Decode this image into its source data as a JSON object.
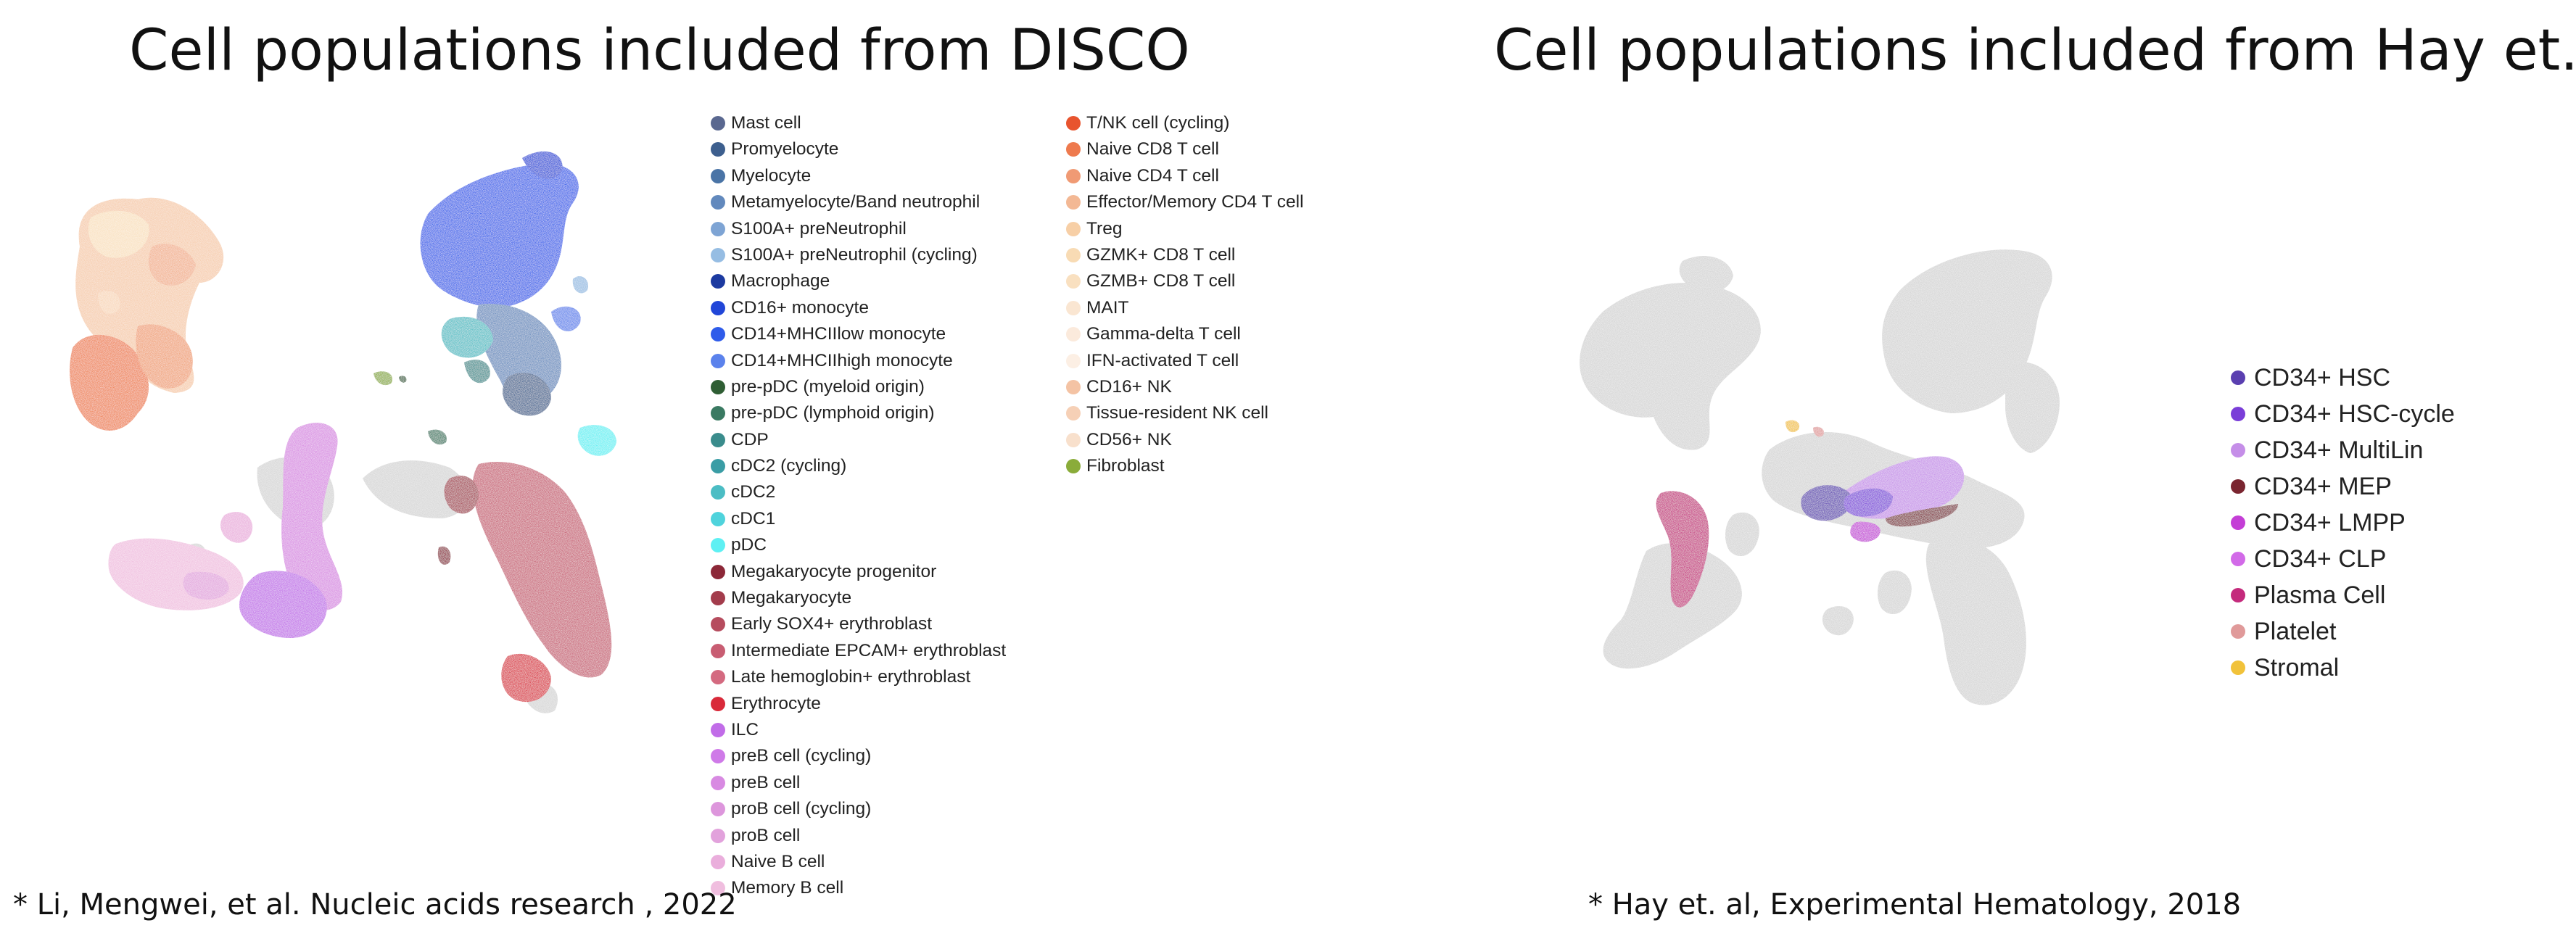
{
  "panels": [
    {
      "title": "Cell populations included from DISCO",
      "citation": "* Li, Mengwei, et al. Nucleic acids research , 2022",
      "legend_columns": [
        [
          {
            "label": "Mast cell",
            "color": "#5a6890"
          },
          {
            "label": "Promyelocyte",
            "color": "#3d5f8e"
          },
          {
            "label": "Myelocyte",
            "color": "#4a74a6"
          },
          {
            "label": "Metamyelocyte/Band neutrophil",
            "color": "#6289bd"
          },
          {
            "label": "S100A+ preNeutrophil",
            "color": "#7ea4d4"
          },
          {
            "label": "S100A+ preNeutrophil (cycling)",
            "color": "#96bde3"
          },
          {
            "label": "Macrophage",
            "color": "#1c3aa0"
          },
          {
            "label": "CD16+ monocyte",
            "color": "#2146d8"
          },
          {
            "label": "CD14+MHCIIlow monocyte",
            "color": "#2f5cea"
          },
          {
            "label": "CD14+MHCIIhigh monocyte",
            "color": "#5b82ec"
          },
          {
            "label": "pre-pDC (myeloid origin)",
            "color": "#2f5e34"
          },
          {
            "label": "pre-pDC (lymphoid origin)",
            "color": "#3a7a62"
          },
          {
            "label": "CDP",
            "color": "#3a8c8c"
          },
          {
            "label": "cDC2 (cycling)",
            "color": "#3a9da5"
          },
          {
            "label": "cDC2",
            "color": "#4bbdc4"
          },
          {
            "label": "cDC1",
            "color": "#4fd3dc"
          },
          {
            "label": "pDC",
            "color": "#5ef0f3"
          },
          {
            "label": "Megakaryocyte progenitor",
            "color": "#8c2838"
          },
          {
            "label": "Megakaryocyte",
            "color": "#a33c4c"
          },
          {
            "label": "Early SOX4+ erythroblast",
            "color": "#b64c5e"
          },
          {
            "label": "Intermediate EPCAM+ erythroblast",
            "color": "#c85d72"
          },
          {
            "label": "Late hemoglobin+ erythroblast",
            "color": "#d46a80"
          },
          {
            "label": "Erythrocyte",
            "color": "#d92a3a"
          },
          {
            "label": "ILC",
            "color": "#c16ce8"
          },
          {
            "label": "preB cell (cycling)",
            "color": "#cf7ae8"
          },
          {
            "label": "preB cell",
            "color": "#d88ae2"
          },
          {
            "label": "proB cell (cycling)",
            "color": "#dd96dc"
          },
          {
            "label": "proB cell",
            "color": "#e2a2dc"
          },
          {
            "label": "Naive B cell",
            "color": "#eaaedc"
          },
          {
            "label": "Memory B cell",
            "color": "#f0bedf"
          }
        ],
        [
          {
            "label": "T/NK cell (cycling)",
            "color": "#e8542e"
          },
          {
            "label": "Naive CD8 T cell",
            "color": "#ee7a4e"
          },
          {
            "label": "Naive CD4 T cell",
            "color": "#f09a74"
          },
          {
            "label": "Effector/Memory CD4 T cell",
            "color": "#f3b894"
          },
          {
            "label": "Treg",
            "color": "#f7cfa6"
          },
          {
            "label": "GZMK+ CD8 T cell",
            "color": "#f8dbb4"
          },
          {
            "label": "GZMB+ CD8 T cell",
            "color": "#f9e0c0"
          },
          {
            "label": "MAIT",
            "color": "#fae6d2"
          },
          {
            "label": "Gamma-delta T cell",
            "color": "#fbeadc"
          },
          {
            "label": "IFN-activated T cell",
            "color": "#fcefe4"
          },
          {
            "label": "CD16+ NK",
            "color": "#f4c3a4"
          },
          {
            "label": "Tissue-resident NK cell",
            "color": "#f6d0b6"
          },
          {
            "label": "CD56+ NK",
            "color": "#f8e0cc"
          },
          {
            "label": "Fibroblast",
            "color": "#8aac3a"
          }
        ]
      ]
    },
    {
      "title": "Cell populations included from Hay et. al",
      "citation": "* Hay et. al, Experimental Hematology, 2018",
      "legend": [
        {
          "label": "CD34+ HSC",
          "color": "#5a3fb0"
        },
        {
          "label": "CD34+ HSC-cycle",
          "color": "#7a3ed8"
        },
        {
          "label": "CD34+ MultiLin",
          "color": "#c58ee8"
        },
        {
          "label": "CD34+ MEP",
          "color": "#7a2530"
        },
        {
          "label": "CD34+ LMPP",
          "color": "#c43ed6"
        },
        {
          "label": "CD34+ CLP",
          "color": "#d26ae8"
        },
        {
          "label": "Plasma Cell",
          "color": "#c42a7c"
        },
        {
          "label": "Platelet",
          "color": "#e09a9a"
        },
        {
          "label": "Stromal",
          "color": "#f1c23a"
        }
      ]
    }
  ]
}
